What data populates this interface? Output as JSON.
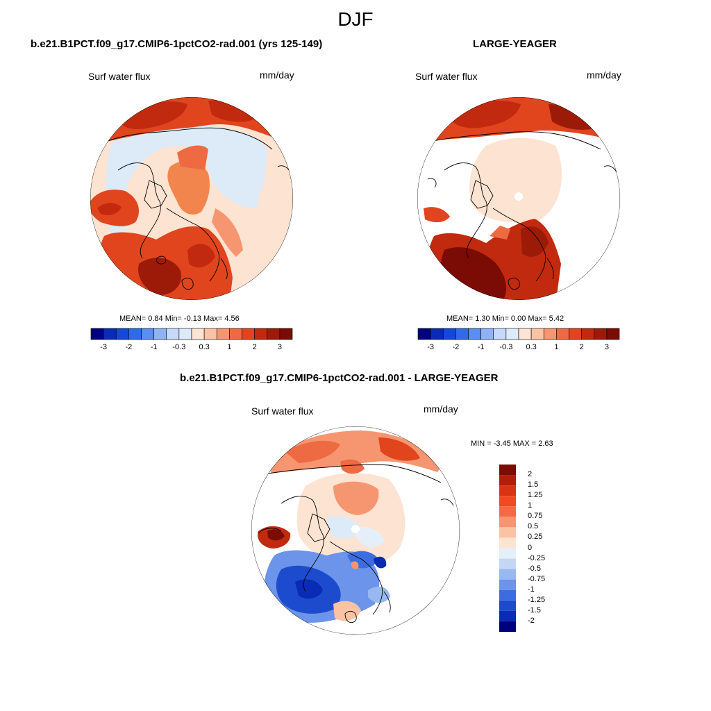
{
  "title": "DJF",
  "units": "mm/day",
  "panel1": {
    "title": "b.e21.B1PCT.f09_g17.CMIP6-1pctCO2-rad.001 (yrs 125-149)",
    "subtitle": "Surf water flux",
    "units": "mm/day",
    "stats": "MEAN=  0.84  Min=  -0.13  Max=  4.56"
  },
  "panel2": {
    "title": "LARGE-YEAGER",
    "subtitle": "Surf water flux",
    "units": "mm/day",
    "stats": "MEAN=  1.30  Min=  0.00  Max=  5.42"
  },
  "panel3": {
    "title": "b.e21.B1PCT.f09_g17.CMIP6-1pctCO2-rad.001 - LARGE-YEAGER",
    "subtitle": "Surf water flux",
    "units": "mm/day",
    "stats": "MIN =  -3.45 MAX =   2.63"
  },
  "horizontal_colorbar": {
    "ticks": [
      "-3",
      "-2",
      "-1",
      "-0.3",
      "0.3",
      "1",
      "2",
      "3"
    ],
    "colors": [
      "#000080",
      "#0a2bb5",
      "#1448d6",
      "#2f6ae8",
      "#5a8ef0",
      "#8fb2f5",
      "#c6d9fb",
      "#ddeaf8",
      "#fde3d1",
      "#fbc3a4",
      "#f69670",
      "#ee6a43",
      "#e0451e",
      "#c12a0e",
      "#9c1b08",
      "#7a0b05"
    ]
  },
  "vertical_colorbar": {
    "labels": [
      "2",
      "1.5",
      "1.25",
      "1",
      "0.75",
      "0.5",
      "0.25",
      "0",
      "-0.25",
      "-0.5",
      "-0.75",
      "-1",
      "-1.25",
      "-1.5",
      "-2"
    ],
    "colors": [
      "#7a0b05",
      "#b01e0a",
      "#d83413",
      "#ef4a22",
      "#f36a44",
      "#f8956f",
      "#fbc3a4",
      "#fde3d1",
      "#e5effa",
      "#c3d7f5",
      "#97b8f0",
      "#6b94ea",
      "#3c6de0",
      "#1c4ccd",
      "#0a2bb5",
      "#00007f"
    ]
  },
  "chart_data": [
    {
      "type": "heatmap",
      "projection": "north-polar-stereographic",
      "title": "b.e21.B1PCT.f09_g17.CMIP6-1pctCO2-rad.001 (yrs 125-149)",
      "variable": "Surf water flux",
      "units": "mm/day",
      "season": "DJF",
      "mean": 0.84,
      "min": -0.13,
      "max": 4.56,
      "contour_levels": [
        -3,
        -2,
        -1,
        -0.3,
        0.3,
        1,
        2,
        3
      ]
    },
    {
      "type": "heatmap",
      "projection": "north-polar-stereographic",
      "title": "LARGE-YEAGER",
      "variable": "Surf water flux",
      "units": "mm/day",
      "season": "DJF",
      "mean": 1.3,
      "min": 0.0,
      "max": 5.42,
      "contour_levels": [
        -3,
        -2,
        -1,
        -0.3,
        0.3,
        1,
        2,
        3
      ]
    },
    {
      "type": "heatmap",
      "projection": "north-polar-stereographic",
      "title": "b.e21.B1PCT.f09_g17.CMIP6-1pctCO2-rad.001 - LARGE-YEAGER",
      "variable": "Surf water flux",
      "units": "mm/day",
      "season": "DJF",
      "min": -3.45,
      "max": 2.63,
      "contour_levels": [
        -2,
        -1.5,
        -1.25,
        -1,
        -0.75,
        -0.5,
        -0.25,
        0,
        0.25,
        0.5,
        0.75,
        1,
        1.25,
        1.5,
        2
      ]
    }
  ]
}
